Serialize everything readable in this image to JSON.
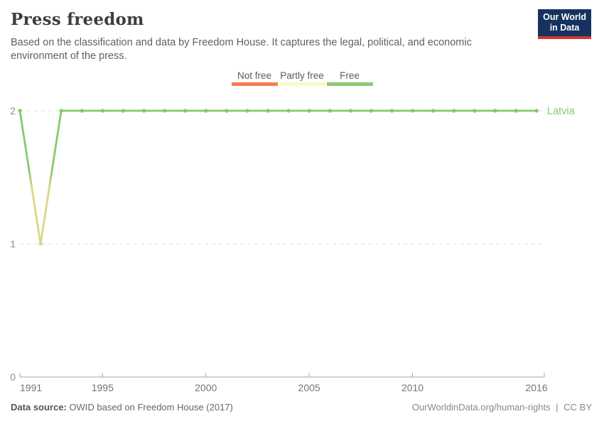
{
  "header": {
    "title": "Press freedom",
    "subtitle": "Based on the classification and data by Freedom House. It captures the legal, political, and economic environment of the press."
  },
  "logo": {
    "line1": "Our World",
    "line2": "in Data",
    "bg": "#15335e",
    "accent": "#d7342e"
  },
  "legend": {
    "items": [
      {
        "label": "Not free",
        "color": "#f4804e"
      },
      {
        "label": "Partly free",
        "color": "#fafac8"
      },
      {
        "label": "Free",
        "color": "#8bc972"
      }
    ]
  },
  "chart_data": {
    "type": "line",
    "title": "Press freedom",
    "entity": "Latvia",
    "entity_color": "#86c96d",
    "x": [
      1991,
      1992,
      1993,
      1994,
      1995,
      1996,
      1997,
      1998,
      1999,
      2000,
      2001,
      2002,
      2003,
      2004,
      2005,
      2006,
      2007,
      2008,
      2009,
      2010,
      2011,
      2012,
      2013,
      2014,
      2015,
      2016
    ],
    "values": [
      2,
      1,
      2,
      2,
      2,
      2,
      2,
      2,
      2,
      2,
      2,
      2,
      2,
      2,
      2,
      2,
      2,
      2,
      2,
      2,
      2,
      2,
      2,
      2,
      2,
      2
    ],
    "value_categories": {
      "0": "Not free",
      "1": "Partly free",
      "2": "Free"
    },
    "category_colors": {
      "Not free": "#f4804e",
      "Partly free": "#d8d88a",
      "Free": "#86c96d"
    },
    "ylim": [
      0,
      2
    ],
    "yticks": [
      0,
      1,
      2
    ],
    "xticks": [
      1991,
      1995,
      2000,
      2005,
      2010,
      2016
    ],
    "grid": "dashed-horizontal",
    "legend_position": "top-center",
    "axis_color": "#a6a6a6",
    "grid_color": "#dcdcdc",
    "ytick_color": "#8f8f8f",
    "xtick_color": "#757575"
  },
  "footer": {
    "source_label": "Data source:",
    "source_text": "OWID based on Freedom House (2017)",
    "link": "OurWorldinData.org/human-rights",
    "separator": "|",
    "license": "CC BY"
  }
}
